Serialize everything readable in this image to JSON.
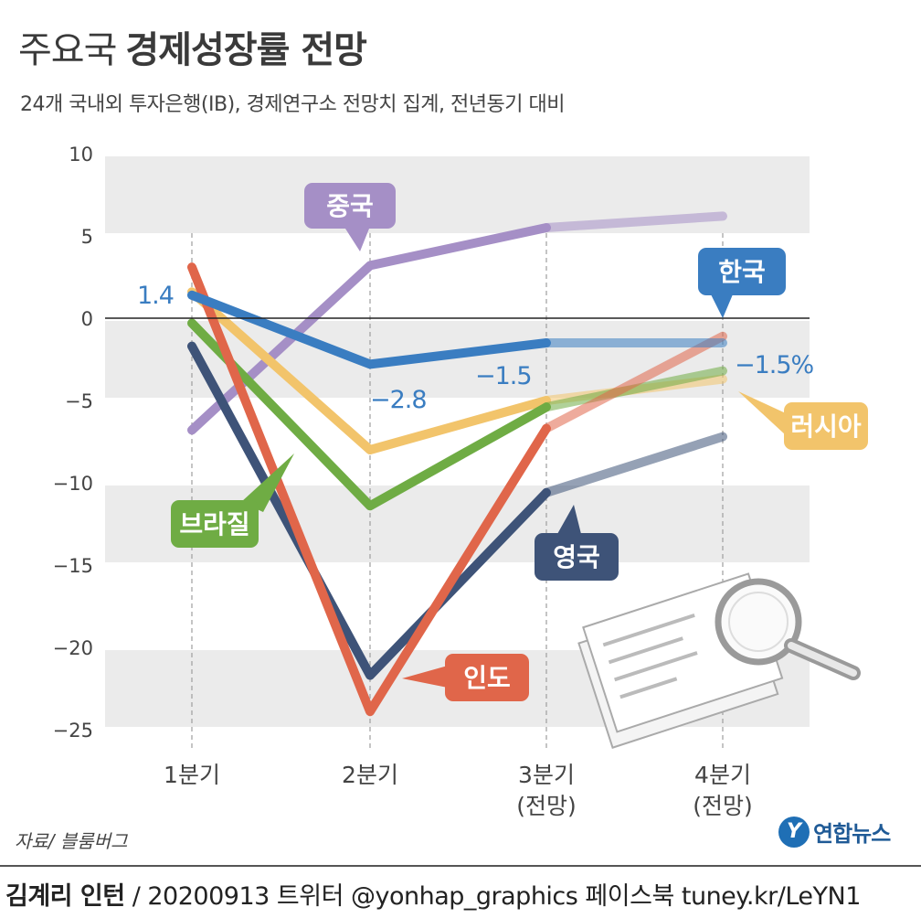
{
  "header": {
    "title_light": "주요국",
    "title_bold": "경제성장률 전망",
    "subtitle": "24개 국내외 투자은행(IB), 경제연구소 전망치 집계, 전년동기 대비"
  },
  "chart_data": {
    "type": "line",
    "categories": [
      "1분기",
      "2분기",
      "3분기",
      "4분기"
    ],
    "category_sub": [
      "",
      "",
      "(전망)",
      "(전망)"
    ],
    "yticks": [
      "10",
      "5",
      "0",
      "-5",
      "-10",
      "-15",
      "-20",
      "-25"
    ],
    "ylim": [
      -25,
      10
    ],
    "series": [
      {
        "name": "중국",
        "color": "#a58fc6",
        "values": [
          -6.8,
          3.2,
          5.5,
          6.2
        ]
      },
      {
        "name": "한국",
        "color": "#3a7dc1",
        "values": [
          1.4,
          -2.8,
          -1.5,
          -1.5
        ]
      },
      {
        "name": "러시아",
        "color": "#f2c46b",
        "values": [
          1.6,
          -8.0,
          -5.0,
          -3.7
        ]
      },
      {
        "name": "브라질",
        "color": "#6fac44",
        "values": [
          -0.3,
          -11.4,
          -5.4,
          -3.2
        ]
      },
      {
        "name": "영국",
        "color": "#3e5378",
        "values": [
          -1.7,
          -21.7,
          -10.6,
          -7.2
        ]
      },
      {
        "name": "인도",
        "color": "#e0664a",
        "values": [
          3.1,
          -23.9,
          -6.7,
          -1.1
        ]
      }
    ],
    "data_labels": {
      "korea_q1": "1.4",
      "korea_q2": "−2.8",
      "korea_q3": "−1.5",
      "korea_q4": "−1.5%"
    }
  },
  "footer": {
    "source": "자료/ 블룸버그",
    "logo": "연합뉴스",
    "logo_mark": "Y",
    "author": "김계리 인턴",
    "credits": "/ 20200913   트위터 @yonhap_graphics   페이스북 tuney.kr/LeYN1"
  }
}
